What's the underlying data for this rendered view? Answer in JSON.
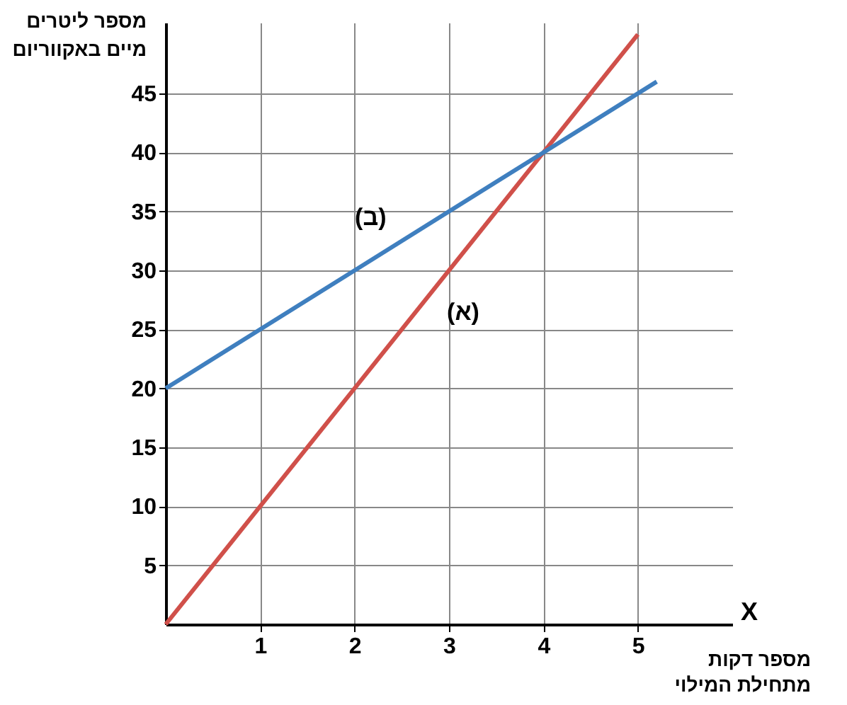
{
  "chart_data": {
    "type": "line",
    "xlabel": "מספר דקות\nמתחילת המילוי",
    "ylabel": "מספר ליטרים\nמיים באקווריום",
    "xlim": [
      0,
      6
    ],
    "xticks": [
      1,
      2,
      3,
      4,
      5
    ],
    "ylim": [
      0,
      51
    ],
    "yticks": [
      5,
      10,
      15,
      20,
      25,
      30,
      35,
      40,
      45
    ],
    "grid": true,
    "line_style": "solid",
    "series": [
      {
        "color": "#d0504a",
        "x": [
          0,
          5
        ],
        "values": [
          0,
          50
        ]
      },
      {
        "color": "#3f7fbf",
        "x": [
          0,
          5.2
        ],
        "values": [
          20,
          46
        ]
      }
    ],
    "annotations": [
      {
        "text": "(א)",
        "x": 3,
        "y": 30
      },
      {
        "text": "(ב)",
        "x": 2.5,
        "y": 32.5
      },
      "X"
    ]
  }
}
